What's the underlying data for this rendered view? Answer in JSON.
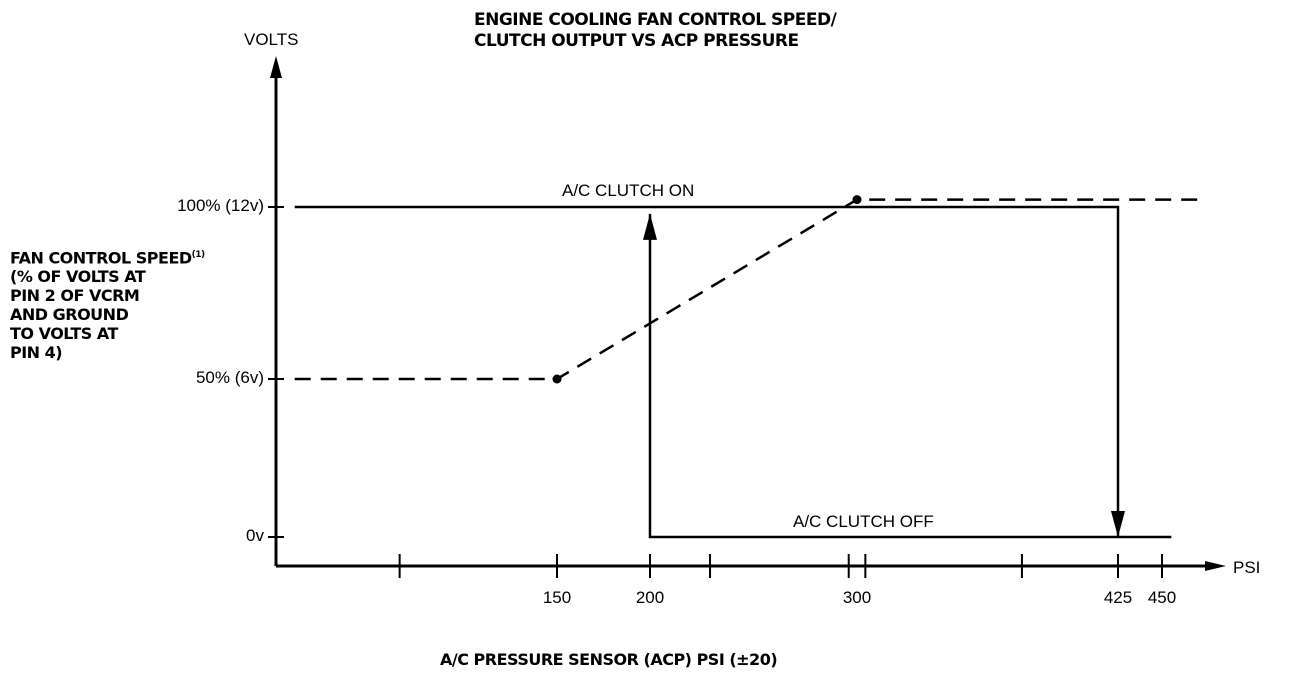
{
  "chart_data": {
    "type": "line",
    "title_lines": [
      "ENGINE COOLING FAN CONTROL SPEED/",
      "CLUTCH OUTPUT VS ACP PRESSURE"
    ],
    "ylabel_top": "VOLTS",
    "ylabel_side": {
      "first_line": "FAN CONTROL SPEED",
      "footnote": "(1)",
      "lines": [
        "(% OF VOLTS AT",
        "PIN 2 OF VCRM",
        "AND GROUND",
        "TO VOLTS AT",
        "PIN 4)"
      ]
    },
    "xlabel": "A/C PRESSURE SENSOR (ACP) PSI (±20)",
    "x_unit": "PSI",
    "y_ticks": [
      {
        "value": 100,
        "label": "100%  (12v)"
      },
      {
        "value": 50,
        "label": "50% (6v)"
      },
      {
        "value": 0,
        "label": "0v"
      }
    ],
    "x_ticks": [
      {
        "value": 66,
        "label": ""
      },
      {
        "value": 150,
        "label": "150"
      },
      {
        "value": 200,
        "label": "200"
      },
      {
        "value": 229,
        "label": ""
      },
      {
        "value": 296,
        "label": ""
      },
      {
        "value": 304,
        "label": ""
      },
      {
        "value": 379,
        "label": ""
      },
      {
        "value": 425,
        "label": "425"
      },
      {
        "value": 450,
        "label": "450"
      }
    ],
    "x_tick_label_values": [
      {
        "value": 150,
        "label": "150"
      },
      {
        "value": 200,
        "label": "200"
      },
      {
        "value": 300,
        "label": "300"
      },
      {
        "value": 425,
        "label": "425"
      },
      {
        "value": 450,
        "label": "450"
      }
    ],
    "series": [
      {
        "name": "Fan control speed",
        "style": "dashed",
        "points": [
          [
            10,
            50
          ],
          [
            150,
            50
          ],
          [
            300,
            102
          ],
          [
            470,
            102
          ]
        ],
        "markers": [
          [
            150,
            50
          ],
          [
            300,
            102
          ]
        ]
      },
      {
        "name": "A/C clutch on",
        "style": "solid",
        "label": "A/C CLUTCH ON",
        "points": [
          [
            10,
            100
          ],
          [
            425,
            100
          ],
          [
            425,
            0
          ]
        ],
        "arrow_end": true
      },
      {
        "name": "A/C clutch off",
        "style": "solid",
        "label": "A/C CLUTCH OFF",
        "points": [
          [
            200,
            98
          ],
          [
            200,
            0
          ],
          [
            455,
            0
          ]
        ],
        "arrow_start": true
      }
    ],
    "ylim": [
      0,
      100
    ],
    "xlim": [
      0,
      480
    ],
    "grid": false
  }
}
